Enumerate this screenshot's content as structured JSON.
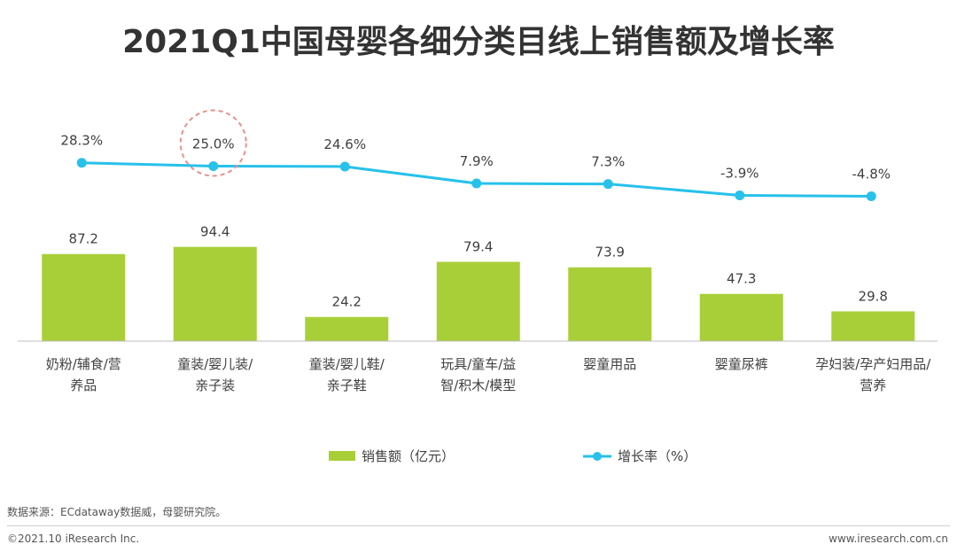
{
  "chart_data": {
    "type": "bar+line",
    "title": "2021Q1中国母婴各细分类目线上销售额及增长率",
    "categories": [
      [
        "奶粉/辅食/营",
        "养品"
      ],
      [
        "童装/婴儿装/",
        "亲子装"
      ],
      [
        "童装/婴儿鞋/",
        "亲子鞋"
      ],
      [
        "玩具/童车/益",
        "智/积木/模型"
      ],
      [
        "婴童用品"
      ],
      [
        "婴童尿裤"
      ],
      [
        "孕妇装/孕产妇用品/",
        "营养"
      ]
    ],
    "series": [
      {
        "name": "销售额（亿元）",
        "type": "bar",
        "color": "#a8cf38",
        "values": [
          87.2,
          94.4,
          24.2,
          79.4,
          73.9,
          47.3,
          29.8
        ],
        "labels": [
          "87.2",
          "94.4",
          "24.2",
          "79.4",
          "73.9",
          "47.3",
          "29.8"
        ]
      },
      {
        "name": "增长率（%）",
        "type": "line",
        "color": "#27c1ea",
        "values": [
          28.3,
          25.0,
          24.6,
          7.9,
          7.3,
          -3.9,
          -4.8
        ],
        "labels": [
          "28.3%",
          "25.0%",
          "24.6%",
          "7.9%",
          "7.3%",
          "-3.9%",
          "-4.8%"
        ]
      }
    ],
    "highlight_index": 1,
    "highlight_color": "#e8918c",
    "legend_position": "bottom",
    "grid": false
  },
  "footer": {
    "source": "数据来源：ECdataway数据威，母婴研究院。",
    "copyright": "©2021.10 iResearch Inc.",
    "website": "www.iresearch.com.cn"
  }
}
